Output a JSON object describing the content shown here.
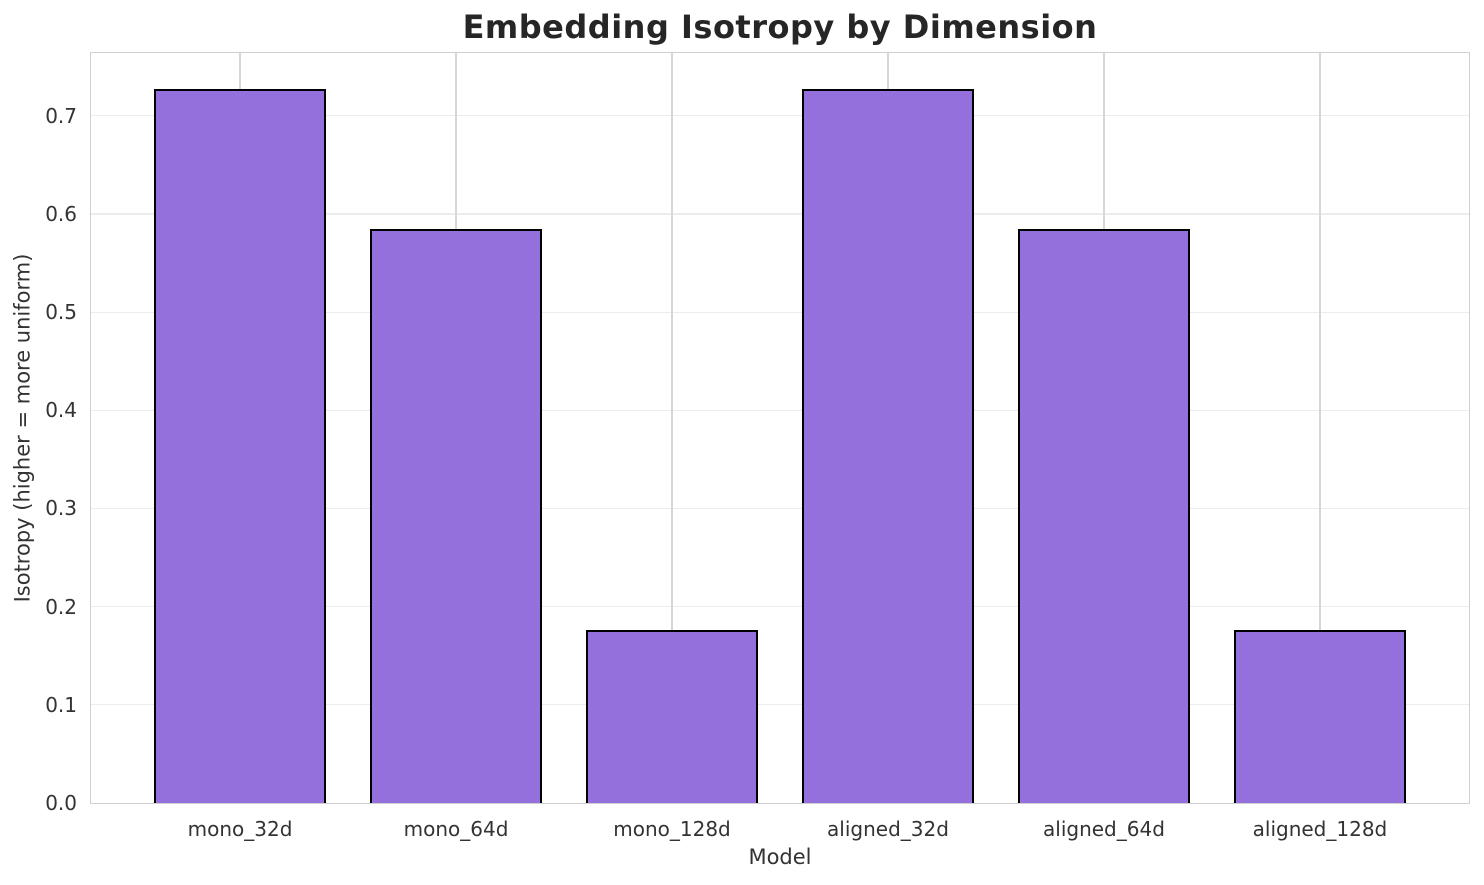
{
  "chart_data": {
    "type": "bar",
    "title": "Embedding Isotropy by Dimension",
    "xlabel": "Model",
    "ylabel": "Isotropy (higher = more uniform)",
    "categories": [
      "mono_32d",
      "mono_64d",
      "mono_128d",
      "aligned_32d",
      "aligned_64d",
      "aligned_128d"
    ],
    "values": [
      0.727,
      0.585,
      0.176,
      0.727,
      0.585,
      0.176
    ],
    "yticks": [
      "0.0",
      "0.1",
      "0.2",
      "0.3",
      "0.4",
      "0.5",
      "0.6",
      "0.7"
    ],
    "ylim": [
      0,
      0.764
    ],
    "xlim": [
      -0.69,
      5.69
    ],
    "bar_width": 0.8,
    "grid": true,
    "legend": null,
    "colors": {
      "bar_fill": "#9370DB",
      "bar_edge": "#000000",
      "grid_horizontal": "#ececec",
      "grid_vertical": "#d6d6d6",
      "spine": "#d0d0d0",
      "title_text": "#262626",
      "axis_text": "#333333"
    }
  }
}
